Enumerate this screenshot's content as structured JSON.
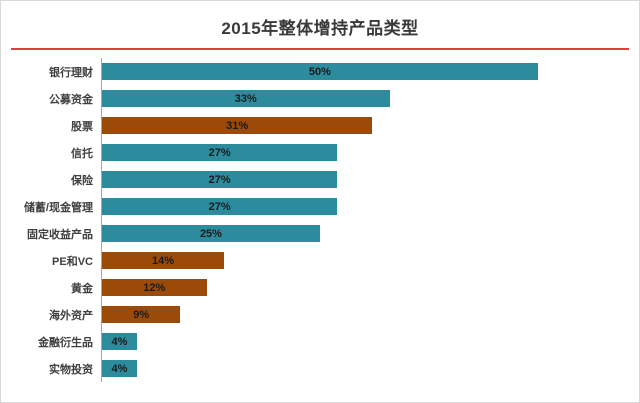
{
  "theme": {
    "teal": "#2C8C9E",
    "rust": "#9C4A08",
    "underline": "#E03E3E",
    "axis": "#A6A6A6"
  },
  "chart_data": {
    "type": "bar",
    "orientation": "horizontal",
    "title": "2015年整体增持产品类型",
    "categories": [
      "银行理财",
      "公募资金",
      "股票",
      "信托",
      "保险",
      "储蓄/现金管理",
      "固定收益产品",
      "PE和VC",
      "黄金",
      "海外资产",
      "金融衍生品",
      "实物投资"
    ],
    "values": [
      50,
      33,
      31,
      27,
      27,
      27,
      25,
      14,
      12,
      9,
      4,
      4
    ],
    "labels": [
      "50%",
      "33%",
      "31%",
      "27%",
      "27%",
      "27%",
      "25%",
      "14%",
      "12%",
      "9%",
      "4%",
      "4%"
    ],
    "colors": [
      "teal",
      "teal",
      "rust",
      "teal",
      "teal",
      "teal",
      "teal",
      "rust",
      "rust",
      "rust",
      "teal",
      "teal"
    ],
    "xlim": [
      0,
      60
    ],
    "xlabel": "",
    "ylabel": "",
    "grid": false,
    "legend": false,
    "value_labels_position": "center"
  }
}
